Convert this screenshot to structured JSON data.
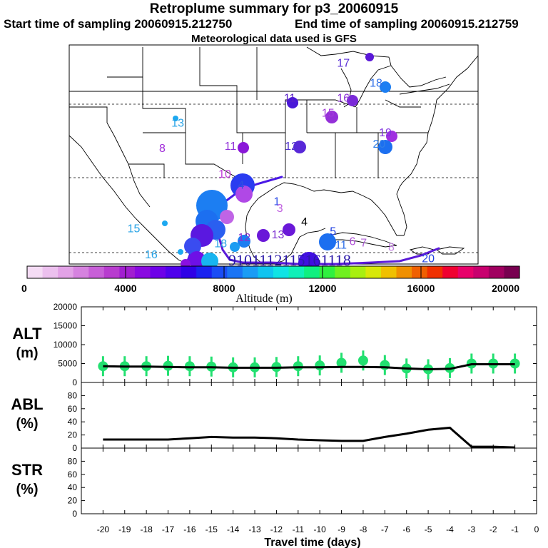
{
  "header": {
    "title": "Retroplume summary for p3_20060915",
    "start_label": "Start time of sampling 20060915.212750",
    "end_label": "End time of sampling 20060915.212759",
    "met_label": "Meteorological data used is GFS"
  },
  "map": {
    "labels": [
      {
        "text": "13",
        "lon": -100.0,
        "lat": 37.3,
        "color": "#27a3e6"
      },
      {
        "text": "8",
        "lon": -101.2,
        "lat": 33.9,
        "color": "#9f2ad8"
      },
      {
        "text": "11",
        "lon": -89.0,
        "lat": 40.6,
        "color": "#5a1fc7"
      },
      {
        "text": "16",
        "lon": -83.8,
        "lat": 40.6,
        "color": "#8b2fd6"
      },
      {
        "text": "18",
        "lon": -80.6,
        "lat": 42.6,
        "color": "#2f6fe8"
      },
      {
        "text": "17",
        "lon": -83.8,
        "lat": 45.3,
        "color": "#5a2fd6"
      },
      {
        "text": "15",
        "lon": -85.3,
        "lat": 38.6,
        "color": "#a33ad9"
      },
      {
        "text": "19",
        "lon": -79.7,
        "lat": 36.0,
        "color": "#8030e0"
      },
      {
        "text": "20",
        "lon": -80.3,
        "lat": 34.5,
        "color": "#2f7fe8"
      },
      {
        "text": "11",
        "lon": -94.8,
        "lat": 34.2,
        "color": "#9030d8"
      },
      {
        "text": "12",
        "lon": -88.9,
        "lat": 34.2,
        "color": "#5030d0"
      },
      {
        "text": "10",
        "lon": -95.4,
        "lat": 30.5,
        "color": "#c040d8"
      },
      {
        "text": "4",
        "lon": -93.5,
        "lat": 29.0,
        "color": "#3050e0"
      },
      {
        "text": "1",
        "lon": -90.0,
        "lat": 26.8,
        "color": "#2f4fe8"
      },
      {
        "text": "3",
        "lon": -89.7,
        "lat": 25.9,
        "color": "#c060e0"
      },
      {
        "text": "4",
        "lon": -87.3,
        "lat": 24.1,
        "color": "#000000"
      },
      {
        "text": "5",
        "lon": -84.5,
        "lat": 22.8,
        "color": "#1f3fe0"
      },
      {
        "text": "11",
        "lon": -84.0,
        "lat": 21.0,
        "color": "#2f6fe8"
      },
      {
        "text": "6",
        "lon": -82.6,
        "lat": 21.5,
        "color": "#b050d8"
      },
      {
        "text": "7",
        "lon": -81.5,
        "lat": 21.3,
        "color": "#b060d8"
      },
      {
        "text": "8",
        "lon": -78.8,
        "lat": 20.7,
        "color": "#c080e0"
      },
      {
        "text": "13",
        "lon": -90.2,
        "lat": 22.4,
        "color": "#7b2fd0"
      },
      {
        "text": "12",
        "lon": -93.5,
        "lat": 22.0,
        "color": "#8a2fd0"
      },
      {
        "text": "18",
        "lon": -95.8,
        "lat": 21.2,
        "color": "#27a3e6"
      },
      {
        "text": "15",
        "lon": -104.3,
        "lat": 23.2,
        "color": "#27a3e6"
      },
      {
        "text": "16",
        "lon": -102.6,
        "lat": 19.7,
        "color": "#27a3e6"
      },
      {
        "text": "20",
        "lon": -75.5,
        "lat": 19.2,
        "color": "#2040e0"
      }
    ],
    "bottom_row": [
      "9",
      "10",
      "1",
      "1",
      "12",
      "11",
      "5",
      "1",
      "6",
      "1",
      "1",
      "1",
      "8"
    ]
  },
  "colorbar": {
    "colors": [
      "#f5dcf5",
      "#ecc0ee",
      "#e2a2e6",
      "#d682df",
      "#c85fd8",
      "#b83ccf",
      "#a21fd0",
      "#8a0ae0",
      "#6e00e8",
      "#4f00ec",
      "#2f00e6",
      "#1a22f0",
      "#1a4cf5",
      "#1a74f5",
      "#1a9cf5",
      "#10c4f0",
      "#10e4e4",
      "#10f0b8",
      "#10f080",
      "#30f040",
      "#70f020",
      "#a8f010",
      "#d8e808",
      "#f0c000",
      "#f09000",
      "#f06000",
      "#f03000",
      "#f00030",
      "#e8006a",
      "#c8006e",
      "#a00060",
      "#780050"
    ],
    "ticks": [
      "0",
      "4000",
      "8000",
      "12000",
      "16000",
      "20000"
    ],
    "label": "Altitude (m)"
  },
  "chart_data": [
    {
      "type": "line",
      "name": "ALT (m)",
      "title": "ALT (m)",
      "ylabel_lines": [
        "ALT",
        "(m)"
      ],
      "x": [
        -20,
        -19,
        -18,
        -17,
        -16,
        -15,
        -14,
        -13,
        -12,
        -11,
        -10,
        -9,
        -8,
        -7,
        -6,
        -5,
        -4,
        -3,
        -2,
        -1
      ],
      "values": [
        4300,
        4200,
        4200,
        4100,
        4000,
        4000,
        3900,
        3900,
        3900,
        4000,
        4000,
        4100,
        4100,
        4000,
        3700,
        3500,
        3600,
        4800,
        4800,
        4800
      ],
      "markers": [
        4300,
        4300,
        4300,
        4400,
        4300,
        4200,
        4000,
        4000,
        4100,
        4300,
        4500,
        5200,
        5800,
        4600,
        3700,
        3500,
        3800,
        5000,
        5000,
        5000
      ],
      "yticks": [
        "0",
        "5000",
        "10000",
        "15000",
        "20000"
      ],
      "ylim": [
        0,
        20000
      ]
    },
    {
      "type": "line",
      "name": "ABL (%)",
      "title": "ABL (%)",
      "ylabel_lines": [
        "ABL",
        "(%)"
      ],
      "x": [
        -20,
        -19,
        -18,
        -17,
        -16,
        -15,
        -14,
        -13,
        -12,
        -11,
        -10,
        -9,
        -8,
        -7,
        -6,
        -5,
        -4,
        -3,
        -2,
        -1
      ],
      "values": [
        13,
        13,
        13,
        13,
        15,
        17,
        16,
        16,
        15,
        13,
        12,
        11,
        11,
        17,
        22,
        28,
        31,
        2,
        2,
        1
      ],
      "yticks": [
        "0",
        "20",
        "40",
        "60",
        "80"
      ],
      "ylim": [
        0,
        100
      ]
    },
    {
      "type": "line",
      "name": "STR (%)",
      "title": "STR (%)",
      "ylabel_lines": [
        "STR",
        "(%)"
      ],
      "x": [],
      "values": [],
      "yticks": [
        "0",
        "20",
        "40",
        "60",
        "80"
      ],
      "ylim": [
        0,
        100
      ],
      "xlabel": "Travel time (days)",
      "xticks": [
        "-20",
        "-19",
        "-18",
        "-17",
        "-16",
        "-15",
        "-14",
        "-13",
        "-12",
        "-11",
        "-10",
        "-9",
        "-8",
        "-7",
        "-6",
        "-5",
        "-4",
        "-3",
        "-2",
        "-1",
        "0"
      ]
    }
  ]
}
